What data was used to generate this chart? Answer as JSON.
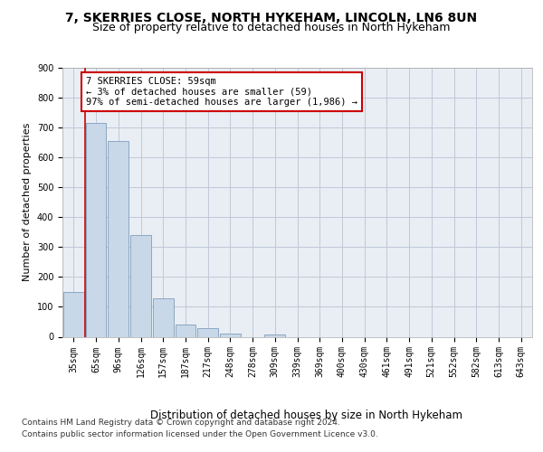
{
  "title": "7, SKERRIES CLOSE, NORTH HYKEHAM, LINCOLN, LN6 8UN",
  "subtitle": "Size of property relative to detached houses in North Hykeham",
  "xlabel": "Distribution of detached houses by size in North Hykeham",
  "ylabel": "Number of detached properties",
  "categories": [
    "35sqm",
    "65sqm",
    "96sqm",
    "126sqm",
    "157sqm",
    "187sqm",
    "217sqm",
    "248sqm",
    "278sqm",
    "309sqm",
    "339sqm",
    "369sqm",
    "400sqm",
    "430sqm",
    "461sqm",
    "491sqm",
    "521sqm",
    "552sqm",
    "582sqm",
    "613sqm",
    "643sqm"
  ],
  "values": [
    150,
    715,
    655,
    340,
    128,
    40,
    30,
    12,
    0,
    8,
    0,
    0,
    0,
    0,
    0,
    0,
    0,
    0,
    0,
    0,
    0
  ],
  "bar_color": "#c8d8e8",
  "bar_edge_color": "#7090b0",
  "grid_color": "#c0c8d8",
  "background_color": "#e8eef4",
  "annotation_box_text": "7 SKERRIES CLOSE: 59sqm\n← 3% of detached houses are smaller (59)\n97% of semi-detached houses are larger (1,986) →",
  "annotation_box_color": "#ffffff",
  "annotation_box_edge_color": "#cc0000",
  "red_line_x": 0.5,
  "ylim": [
    0,
    900
  ],
  "yticks": [
    0,
    100,
    200,
    300,
    400,
    500,
    600,
    700,
    800,
    900
  ],
  "footer_line1": "Contains HM Land Registry data © Crown copyright and database right 2024.",
  "footer_line2": "Contains public sector information licensed under the Open Government Licence v3.0.",
  "title_fontsize": 10,
  "subtitle_fontsize": 9,
  "tick_fontsize": 7,
  "ylabel_fontsize": 8,
  "xlabel_fontsize": 8.5
}
